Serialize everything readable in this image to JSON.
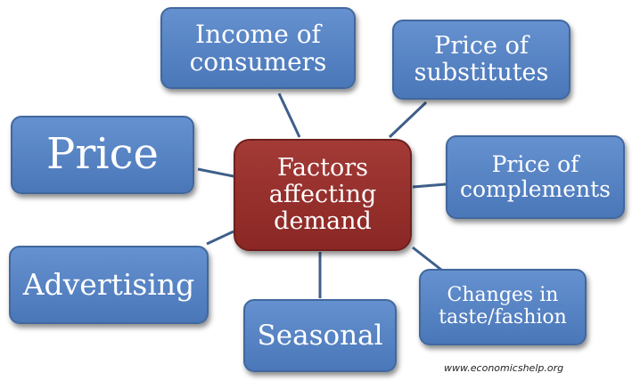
{
  "center": {
    "lines": [
      "Factors",
      "affecting",
      "demand"
    ]
  },
  "factors": [
    {
      "id": "income",
      "lines": [
        "Income of",
        "consumers"
      ]
    },
    {
      "id": "substitutes",
      "lines": [
        "Price of",
        "substitutes"
      ]
    },
    {
      "id": "price",
      "lines": [
        "Price"
      ]
    },
    {
      "id": "complements",
      "lines": [
        "Price of",
        "complements"
      ]
    },
    {
      "id": "advertising",
      "lines": [
        "Advertising"
      ]
    },
    {
      "id": "changes",
      "lines": [
        "Changes in",
        "taste/fashion"
      ]
    },
    {
      "id": "seasonal",
      "lines": [
        "Seasonal"
      ]
    }
  ],
  "credit": "www.economicshelp.org",
  "colors": {
    "node_fill": "#5684c4",
    "center_fill": "#962f2c",
    "connector": "#3f5f8a"
  }
}
